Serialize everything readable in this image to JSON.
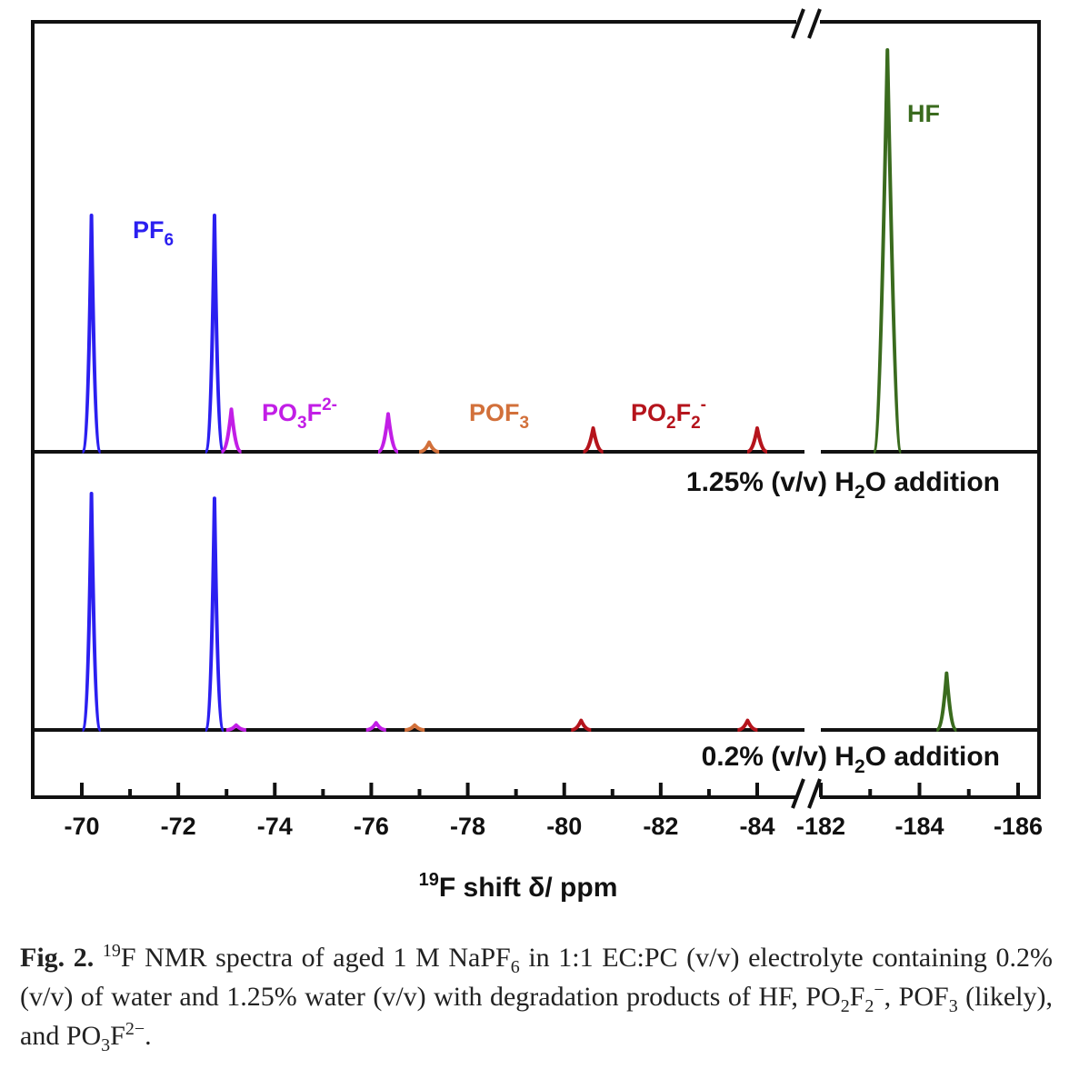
{
  "figure": {
    "x_axis_title": {
      "prefix": "19",
      "main": "F shift δ/ ppm"
    },
    "ticks_left": [
      "-70",
      "-72",
      "-74",
      "-76",
      "-78",
      "-80",
      "-82",
      "-84"
    ],
    "ticks_right": [
      "-182",
      "-184",
      "-186"
    ],
    "peak_labels": {
      "pf6": {
        "main": "PF",
        "sub": "6",
        "sup": "",
        "color": "#2b1ff0"
      },
      "po3f": {
        "main": "PO",
        "sub": "3",
        "main2": "F",
        "sup": "2-",
        "color": "#c21ee6"
      },
      "pof3": {
        "main": "POF",
        "sub": "3",
        "sup": "",
        "color": "#d2703a"
      },
      "po2f2": {
        "main": "PO",
        "sub": "2",
        "main2": "F",
        "sub2": "2",
        "sup": "-",
        "color": "#b5141c"
      },
      "hf": {
        "main": "HF",
        "color": "#3a6b1e"
      }
    },
    "conditions": {
      "top": {
        "pre": "1.25% (v/v) H",
        "sub": "2",
        "post": "O addition"
      },
      "bottom": {
        "pre": "0.2% (v/v) H",
        "sub": "2",
        "post": "O addition"
      }
    }
  },
  "chart_data": {
    "type": "line",
    "x_label": "19F shift δ/ ppm",
    "x_segments": [
      {
        "xlim": [
          -69,
          -84.5
        ]
      },
      {
        "xlim": [
          -182,
          -186
        ]
      }
    ],
    "series": [
      {
        "name": "1.25% (v/v) H2O addition",
        "peaks": [
          {
            "label": "PF6",
            "x": -70.2,
            "height": 1.0,
            "color": "#2b1ff0"
          },
          {
            "label": "PF6",
            "x": -72.75,
            "height": 1.0,
            "color": "#2b1ff0"
          },
          {
            "label": "PO3F2-",
            "x": -73.1,
            "height": 0.18,
            "color": "#c21ee6"
          },
          {
            "label": "PO3F2-",
            "x": -76.35,
            "height": 0.16,
            "color": "#c21ee6"
          },
          {
            "label": "POF3",
            "x": -77.2,
            "height": 0.04,
            "color": "#d2703a"
          },
          {
            "label": "PO2F2-",
            "x": -80.6,
            "height": 0.1,
            "color": "#b5141c"
          },
          {
            "label": "PO2F2-",
            "x": -84.0,
            "height": 0.1,
            "color": "#b5141c"
          },
          {
            "label": "HF",
            "x": -183.35,
            "height": 1.7,
            "color": "#3a6b1e"
          }
        ]
      },
      {
        "name": "0.2% (v/v) H2O addition",
        "peaks": [
          {
            "label": "PF6",
            "x": -70.2,
            "height": 1.0,
            "color": "#2b1ff0"
          },
          {
            "label": "PF6",
            "x": -72.75,
            "height": 0.98,
            "color": "#2b1ff0"
          },
          {
            "label": "PO3F2-",
            "x": -73.2,
            "height": 0.02,
            "color": "#c21ee6"
          },
          {
            "label": "PO3F2-",
            "x": -76.1,
            "height": 0.03,
            "color": "#c21ee6"
          },
          {
            "label": "POF3",
            "x": -76.9,
            "height": 0.02,
            "color": "#d2703a"
          },
          {
            "label": "PO2F2-",
            "x": -80.35,
            "height": 0.04,
            "color": "#b5141c"
          },
          {
            "label": "PO2F2-",
            "x": -83.8,
            "height": 0.04,
            "color": "#b5141c"
          },
          {
            "label": "HF",
            "x": -184.55,
            "height": 0.24,
            "color": "#3a6b1e"
          }
        ]
      }
    ]
  },
  "caption": {
    "label": "Fig. 2.",
    "sup19": "19",
    "t1": "F NMR spectra of aged 1 M NaPF",
    "s6": "6",
    "t2": " in 1:1 EC:PC (v/v) electrolyte containing 0.2% (v/v) of water and 1.25% water (v/v) with degradation products of HF, PO",
    "s2a": "2",
    "t3": "F",
    "s2b": "2",
    "supminus": "−",
    "t4": ", POF",
    "s3": "3",
    "t5": " (likely), and PO",
    "s3b": "3",
    "t6": "F",
    "sup2m": "2−",
    "t7": "."
  }
}
